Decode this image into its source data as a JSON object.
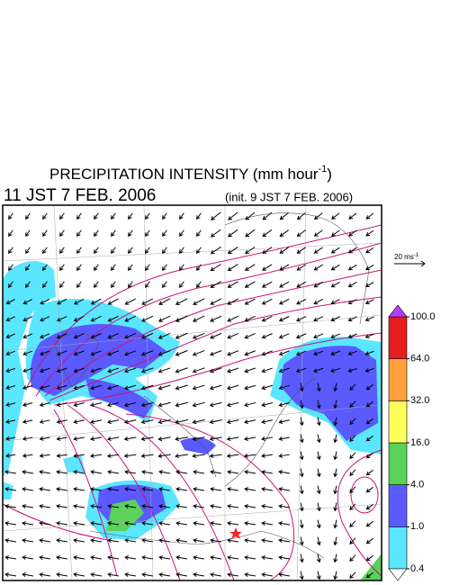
{
  "title": {
    "text": "PRECIPITATION INTENSITY (mm hour",
    "superscript": "-1",
    "close": ")"
  },
  "valid_time": "11 JST 7 FEB. 2006",
  "init_time": "(init. 9 JST 7 FEB. 2006)",
  "wind_scale": {
    "text": "20 ms",
    "superscript": "-1"
  },
  "colorbar": {
    "ticks": [
      {
        "value": 0.4,
        "label": "0.4"
      },
      {
        "value": 1,
        "label": "1.0"
      },
      {
        "value": 4,
        "label": "4.0"
      },
      {
        "value": 16,
        "label": "16.0"
      },
      {
        "value": 32,
        "label": "32.0"
      },
      {
        "value": 64,
        "label": "64.0"
      },
      {
        "value": 100,
        "label": "100.0"
      }
    ],
    "colors": [
      "#5ae6ff",
      "#5a5aff",
      "#5ad25a",
      "#ffff5a",
      "#ffa03c",
      "#e61e1e"
    ],
    "under_color": "#ffffff",
    "over_color": "#b43cff"
  }
}
